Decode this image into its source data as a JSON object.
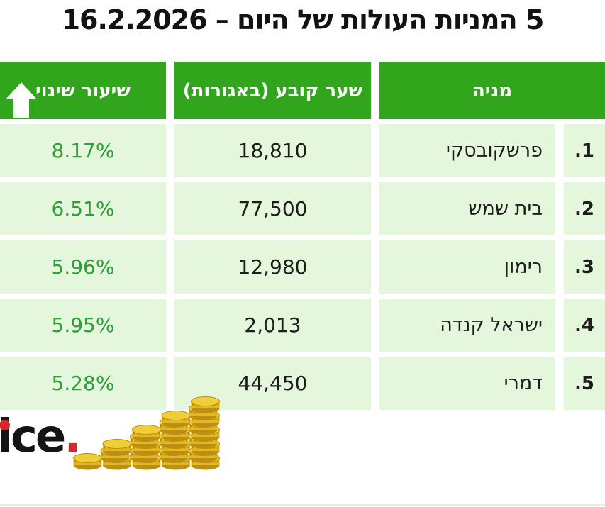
{
  "title": "5 המניות העולות של היום – 16.2.2026",
  "table": {
    "headers": {
      "stock": "מניה",
      "price": "שער קובע (באגורות)",
      "change": "שיעור שינוי"
    },
    "rows": [
      {
        "rank": ".1",
        "stock": "פרשקובסקי",
        "price": "18,810",
        "change": "8.17%"
      },
      {
        "rank": ".2",
        "stock": "בית שמש",
        "price": "77,500",
        "change": "6.51%"
      },
      {
        "rank": ".3",
        "stock": "רימון",
        "price": "12,980",
        "change": "5.96%"
      },
      {
        "rank": ".4",
        "stock": "ישראל קנדה",
        "price": "2,013",
        "change": "5.95%"
      },
      {
        "rank": ".5",
        "stock": "דמרי",
        "price": "44,450",
        "change": "5.28%"
      }
    ]
  },
  "chart_data": {
    "type": "table",
    "title": "5 המניות העולות של היום – 16.2.2026",
    "date": "16.2.2026",
    "columns": [
      "מניה",
      "שער קובע (באגורות)",
      "שיעור שינוי"
    ],
    "rows": [
      [
        "פרשקובסקי",
        18810,
        "8.17%"
      ],
      [
        "בית שמש",
        77500,
        "6.51%"
      ],
      [
        "רימון",
        12980,
        "5.96%"
      ],
      [
        "ישראל קנדה",
        2013,
        "5.95%"
      ],
      [
        "דמרי",
        44450,
        "5.28%"
      ]
    ]
  },
  "logo": {
    "text": "ice",
    "period": "."
  },
  "colors": {
    "header_green": "#31a51c",
    "cell_green": "#e4f6dc",
    "change_green": "#2f9e38",
    "logo_red": "#d7282f",
    "coin_gold": "#e3b722",
    "coin_dark": "#bb8f14",
    "coin_light": "#f0ce38"
  },
  "illustration": {
    "coin_stacks": [
      1,
      3,
      5,
      7,
      9
    ]
  }
}
